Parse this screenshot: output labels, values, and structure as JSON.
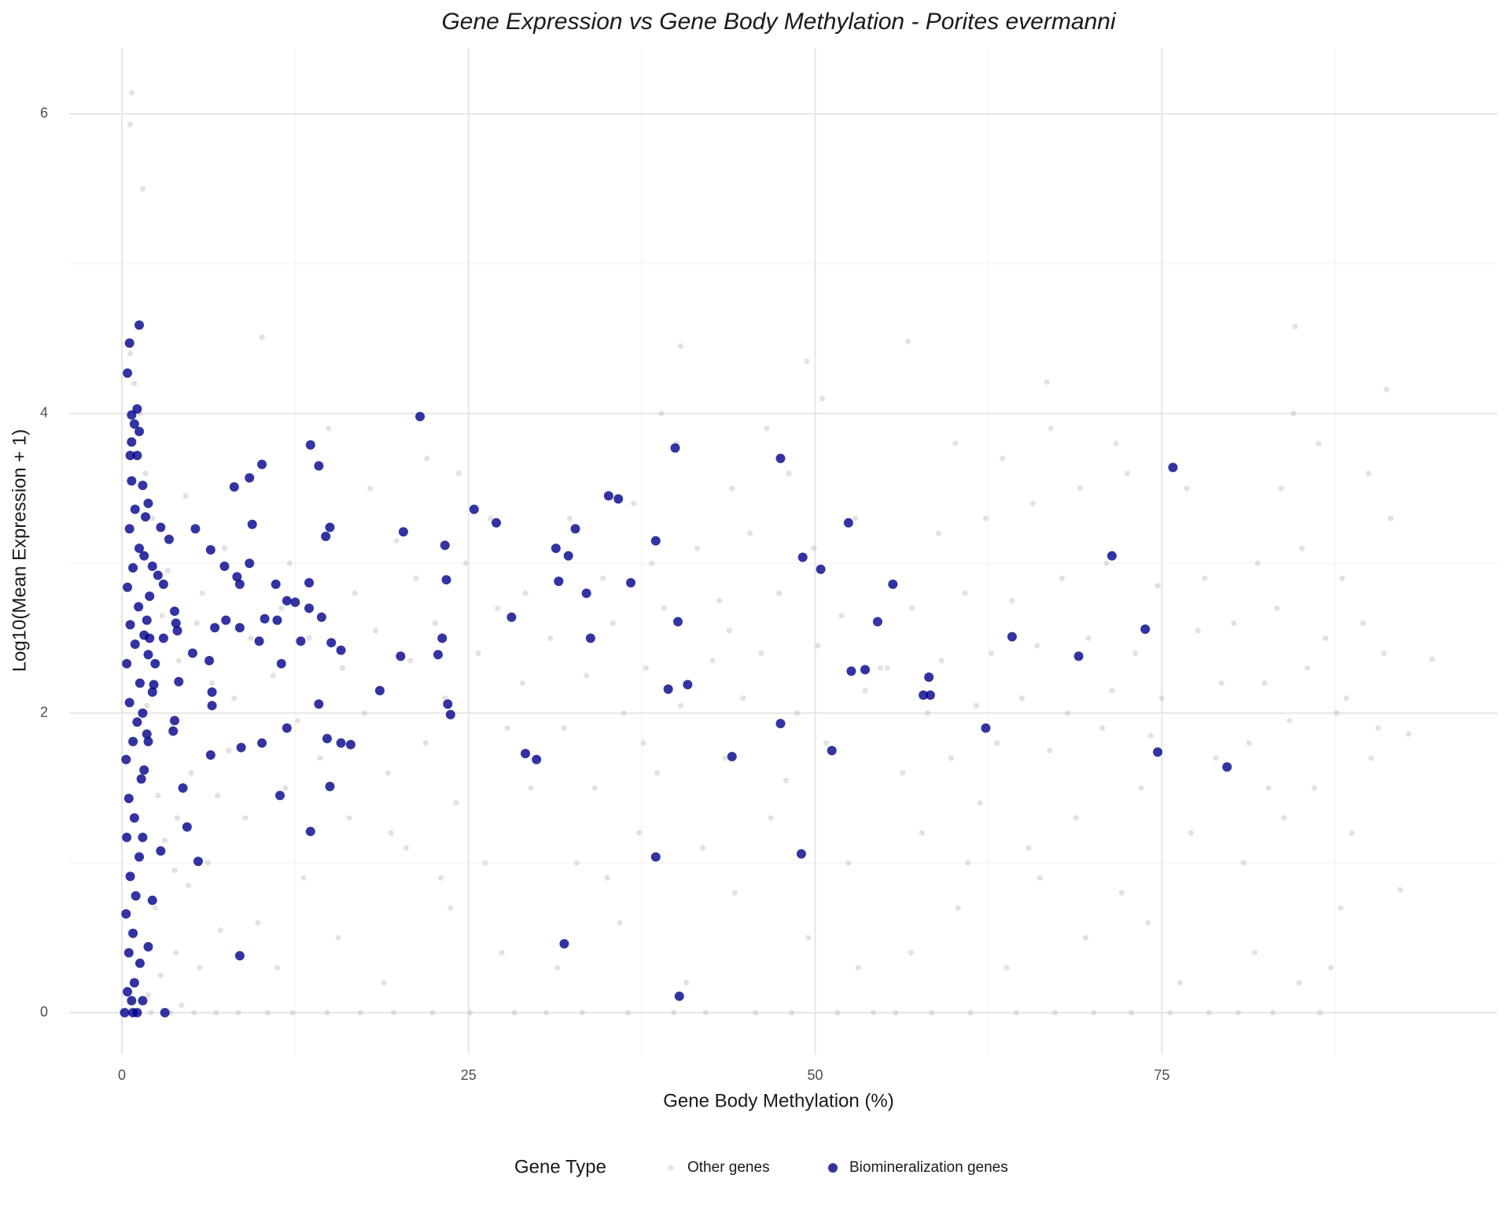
{
  "chart_data": {
    "type": "scatter",
    "title": "Gene Expression vs Gene Body Methylation - Porites evermanni",
    "x_label": "Gene Body Methylation (%)",
    "y_label": "Log10(Mean Expression + 1)",
    "legend_title": "Gene Type",
    "legend_position": "bottom",
    "grid": true,
    "xlim": [
      -3.8,
      99.2
    ],
    "ylim": [
      -0.28,
      6.44
    ],
    "xticks": [
      0,
      25,
      50,
      75
    ],
    "yticks": [
      0,
      2,
      4,
      6
    ],
    "x_minor_grid": [
      12.5,
      37.5,
      62.5,
      87.5
    ],
    "y_minor_grid": [
      1,
      3,
      5
    ],
    "series": [
      {
        "name": "Other genes",
        "color": "#bebebe",
        "opacity": 0.45,
        "x": [
          0.7,
          0.6,
          1.5,
          10.1,
          40.3,
          56.7,
          49.4,
          84.6,
          66.7,
          91.2,
          94.5,
          92.8,
          92.2,
          2.1,
          3.5,
          5.2,
          6.8,
          8.4,
          4.3,
          1.9,
          2.8,
          3.9,
          5.6,
          7.1,
          2.4,
          4.8,
          6.2,
          3.1,
          8.9,
          2.6,
          5.0,
          7.7,
          3.6,
          1.8,
          6.5,
          4.1,
          9.3,
          2.9,
          5.8,
          3.3,
          7.4,
          2.2,
          4.6,
          1.7,
          0.9,
          1.3,
          0.6,
          3.8,
          9.8,
          8.1,
          6.9,
          5.4,
          4.0,
          10.5,
          12.3,
          14.8,
          17.2,
          19.6,
          22.4,
          25.1,
          28.3,
          11.2,
          15.6,
          18.9,
          23.7,
          27.4,
          13.1,
          20.5,
          26.2,
          16.4,
          24.1,
          11.8,
          19.2,
          29.5,
          14.3,
          21.9,
          27.8,
          12.7,
          17.5,
          23.3,
          28.9,
          10.9,
          15.9,
          20.8,
          25.7,
          13.5,
          18.3,
          22.6,
          27.1,
          16.8,
          21.2,
          24.8,
          19.8,
          12.1,
          26.6,
          17.9,
          22.0,
          14.9,
          24.3,
          29.1,
          11.5,
          19.4,
          23.0,
          30.6,
          33.2,
          36.5,
          39.8,
          42.1,
          45.7,
          48.3,
          51.6,
          54.2,
          31.4,
          35.9,
          40.7,
          44.2,
          49.5,
          53.1,
          32.8,
          37.3,
          41.9,
          46.8,
          52.4,
          34.1,
          38.6,
          43.5,
          47.9,
          50.8,
          31.9,
          36.2,
          40.3,
          44.8,
          48.7,
          53.6,
          33.5,
          37.8,
          42.6,
          46.1,
          50.2,
          54.7,
          30.9,
          35.4,
          39.1,
          43.1,
          47.4,
          51.9,
          34.7,
          38.2,
          41.5,
          45.3,
          49.9,
          32.3,
          36.9,
          44.0,
          48.1,
          52.9,
          40.0,
          46.5,
          38.9,
          50.5,
          35.0,
          43.8,
          37.6,
          55.8,
          58.4,
          61.2,
          64.5,
          67.3,
          70.1,
          72.8,
          75.6,
          78.4,
          56.9,
          60.3,
          63.8,
          66.2,
          69.5,
          72.1,
          76.3,
          57.7,
          61.9,
          65.4,
          68.8,
          73.5,
          77.1,
          56.3,
          59.8,
          63.1,
          66.9,
          70.7,
          74.2,
          78.9,
          58.1,
          61.6,
          64.9,
          68.2,
          71.4,
          75.0,
          79.3,
          55.2,
          59.1,
          62.7,
          66.0,
          69.7,
          73.1,
          77.6,
          57.0,
          60.8,
          64.2,
          67.8,
          71.0,
          74.7,
          78.1,
          58.9,
          62.3,
          65.7,
          69.1,
          72.5,
          76.8,
          60.1,
          63.5,
          67.0,
          71.7,
          61.0,
          74.0,
          80.5,
          83.0,
          86.4,
          81.7,
          84.9,
          87.2,
          80.9,
          83.8,
          86.0,
          88.7,
          81.3,
          84.2,
          87.6,
          90.1,
          82.4,
          85.5,
          88.3,
          91.0,
          80.2,
          83.3,
          86.8,
          89.5,
          81.9,
          85.1,
          88.0,
          91.5,
          83.6,
          86.3,
          89.9,
          84.5,
          82.7,
          87.9,
          90.6
        ],
        "y": [
          6.14,
          5.93,
          5.5,
          4.51,
          4.45,
          4.48,
          4.35,
          4.58,
          4.21,
          4.16,
          2.36,
          1.86,
          0.82,
          0.0,
          0.0,
          0.0,
          0.0,
          0.0,
          0.05,
          0.12,
          0.25,
          0.4,
          0.3,
          0.55,
          0.7,
          0.85,
          1.0,
          1.15,
          1.3,
          1.45,
          1.6,
          1.75,
          1.9,
          2.05,
          2.2,
          2.35,
          2.5,
          2.65,
          2.8,
          2.95,
          3.1,
          3.3,
          3.45,
          3.6,
          4.2,
          4.0,
          4.4,
          0.95,
          0.6,
          2.1,
          1.45,
          2.6,
          1.3,
          0.0,
          0.0,
          0.0,
          0.0,
          0.0,
          0.0,
          0.0,
          0.0,
          0.3,
          0.5,
          0.2,
          0.7,
          0.4,
          0.9,
          1.1,
          1.0,
          1.3,
          1.4,
          1.5,
          1.6,
          1.5,
          1.7,
          1.8,
          1.9,
          1.95,
          2.0,
          2.1,
          2.2,
          2.25,
          2.3,
          2.35,
          2.4,
          2.5,
          2.55,
          2.6,
          2.7,
          2.8,
          2.9,
          3.0,
          3.15,
          3.0,
          3.3,
          3.5,
          3.7,
          3.9,
          3.6,
          2.8,
          2.7,
          1.2,
          0.9,
          0.0,
          0.0,
          0.0,
          0.0,
          0.0,
          0.0,
          0.0,
          0.0,
          0.0,
          0.3,
          0.6,
          0.2,
          0.8,
          0.5,
          0.3,
          1.0,
          1.2,
          1.1,
          1.3,
          1.0,
          1.5,
          1.6,
          1.7,
          1.55,
          1.8,
          1.9,
          2.0,
          2.05,
          2.1,
          2.0,
          2.15,
          2.25,
          2.3,
          2.35,
          2.4,
          2.45,
          2.3,
          2.5,
          2.6,
          2.7,
          2.75,
          2.8,
          2.65,
          2.9,
          3.0,
          3.1,
          3.2,
          3.1,
          3.3,
          3.4,
          3.5,
          3.6,
          3.3,
          3.8,
          3.9,
          4.0,
          4.1,
          0.9,
          2.55,
          1.8,
          0.0,
          0.0,
          0.0,
          0.0,
          0.0,
          0.0,
          0.0,
          0.0,
          0.0,
          0.4,
          0.7,
          0.3,
          0.9,
          0.5,
          0.8,
          0.2,
          1.2,
          1.4,
          1.1,
          1.3,
          1.5,
          1.2,
          1.6,
          1.7,
          1.8,
          1.75,
          1.9,
          1.85,
          1.7,
          2.0,
          2.05,
          2.1,
          2.0,
          2.15,
          2.1,
          2.2,
          2.3,
          2.35,
          2.4,
          2.45,
          2.5,
          2.4,
          2.55,
          2.7,
          2.8,
          2.75,
          2.9,
          3.0,
          2.85,
          2.9,
          3.2,
          3.3,
          3.4,
          3.5,
          3.6,
          3.5,
          3.8,
          3.7,
          3.9,
          3.8,
          1.0,
          0.6,
          0.0,
          0.0,
          0.0,
          0.4,
          0.2,
          0.3,
          1.0,
          1.3,
          1.5,
          1.2,
          1.8,
          1.95,
          2.0,
          1.7,
          2.2,
          2.3,
          2.1,
          2.4,
          2.6,
          2.7,
          2.5,
          2.6,
          3.0,
          3.1,
          2.9,
          3.3,
          3.5,
          3.8,
          3.6,
          4.0,
          1.5,
          0.7,
          1.9
        ]
      },
      {
        "name": "Biomineralization genes",
        "color": "#00008b",
        "opacity": 0.8,
        "x": [
          0.55,
          1.25,
          0.4,
          1.1,
          0.7,
          0.9,
          1.25,
          0.7,
          1.1,
          0.6,
          21.5,
          13.6,
          14.2,
          10.1,
          9.2,
          8.1,
          39.9,
          47.5,
          75.8,
          35.1,
          35.8,
          25.4,
          27,
          52.4,
          32.7,
          15,
          9.4,
          5.3,
          20.3,
          14.7,
          3.4,
          2.8,
          1.9,
          1.7,
          23.3,
          38.5,
          6.4,
          31.3,
          32.2,
          71.4,
          49.1,
          50.4,
          9.2,
          7.4,
          8.3,
          2.6,
          23.4,
          36.7,
          31.5,
          13.5,
          11.1,
          55.6,
          8.5,
          33.5,
          3.0,
          11.9,
          12.5,
          13.5,
          3.8,
          10.3,
          7.5,
          11.2,
          28.1,
          14.4,
          40.1,
          54.5,
          3.9,
          6.7,
          8.5,
          73.8,
          4.0,
          3.0,
          33.8,
          64.2,
          23.1,
          9.9,
          12.9,
          15.1,
          15.8,
          5.1,
          22.8,
          20.1,
          69.0,
          6.3,
          11.5,
          53.6,
          52.6,
          58.2,
          4.1,
          40.8,
          6.5,
          18.6,
          39.4,
          57.8,
          58.3,
          14.2,
          23.5,
          6.5,
          23.7,
          3.8,
          47.5,
          3.7,
          11.9,
          62.3,
          14.8,
          15.8,
          16.5,
          10.1,
          8.6,
          51.2,
          74.7,
          6.4,
          29.1,
          29.9,
          44.0,
          79.7,
          15.0,
          4.4,
          11.4,
          4.7,
          13.6,
          5.5,
          38.5,
          49.0,
          2.8,
          31.9,
          8.5,
          1.9,
          40.2,
          3.1,
          2.2,
          1.8,
          1.9,
          2.2,
          2.3,
          2.4,
          1.9,
          2.0,
          1.8,
          2.0,
          2.2,
          1.6,
          0.2,
          0.8,
          1.1,
          0.4,
          0.9,
          1.3,
          0.5,
          0.8,
          0.3,
          1.0,
          0.6,
          1.25,
          0.35,
          0.9,
          0.5,
          1.4,
          0.3,
          0.8,
          1.1,
          0.55,
          1.3,
          0.35,
          0.95,
          0.6,
          1.2,
          0.4,
          0.8,
          1.25,
          0.55,
          0.95,
          0.7,
          1.5,
          1.5,
          1.6,
          1.5,
          1.6,
          1.5,
          0.7
        ],
        "y": [
          4.47,
          4.59,
          4.27,
          4.03,
          3.99,
          3.93,
          3.88,
          3.81,
          3.72,
          3.72,
          3.98,
          3.79,
          3.65,
          3.66,
          3.57,
          3.51,
          3.77,
          3.7,
          3.64,
          3.45,
          3.43,
          3.36,
          3.27,
          3.27,
          3.23,
          3.24,
          3.26,
          3.23,
          3.21,
          3.18,
          3.16,
          3.24,
          3.4,
          3.31,
          3.12,
          3.15,
          3.09,
          3.1,
          3.05,
          3.05,
          3.04,
          2.96,
          3.0,
          2.98,
          2.91,
          2.92,
          2.89,
          2.87,
          2.88,
          2.87,
          2.86,
          2.86,
          2.86,
          2.8,
          2.86,
          2.75,
          2.74,
          2.7,
          2.68,
          2.63,
          2.62,
          2.62,
          2.64,
          2.64,
          2.61,
          2.61,
          2.6,
          2.57,
          2.57,
          2.56,
          2.55,
          2.5,
          2.5,
          2.51,
          2.5,
          2.48,
          2.48,
          2.47,
          2.42,
          2.4,
          2.39,
          2.38,
          2.38,
          2.35,
          2.33,
          2.29,
          2.28,
          2.24,
          2.21,
          2.19,
          2.14,
          2.15,
          2.16,
          2.12,
          2.12,
          2.06,
          2.06,
          2.05,
          1.99,
          1.95,
          1.93,
          1.88,
          1.9,
          1.9,
          1.83,
          1.8,
          1.79,
          1.8,
          1.77,
          1.75,
          1.74,
          1.72,
          1.73,
          1.69,
          1.71,
          1.64,
          1.51,
          1.5,
          1.45,
          1.24,
          1.21,
          1.01,
          1.04,
          1.06,
          1.08,
          0.46,
          0.38,
          0.44,
          0.11,
          0,
          0.75,
          1.86,
          1.81,
          2.14,
          2.19,
          2.33,
          2.39,
          2.5,
          2.62,
          2.78,
          2.98,
          3.05,
          0,
          0,
          0,
          0.14,
          0.2,
          0.33,
          0.4,
          0.53,
          0.66,
          0.78,
          0.91,
          1.04,
          1.17,
          1.3,
          1.43,
          1.56,
          1.69,
          1.81,
          1.94,
          2.07,
          2.2,
          2.33,
          2.46,
          2.59,
          2.71,
          2.84,
          2.97,
          3.1,
          3.23,
          3.36,
          3.55,
          3.52,
          2.0,
          1.62,
          1.17,
          2.52,
          0.08,
          0.08
        ]
      }
    ]
  }
}
